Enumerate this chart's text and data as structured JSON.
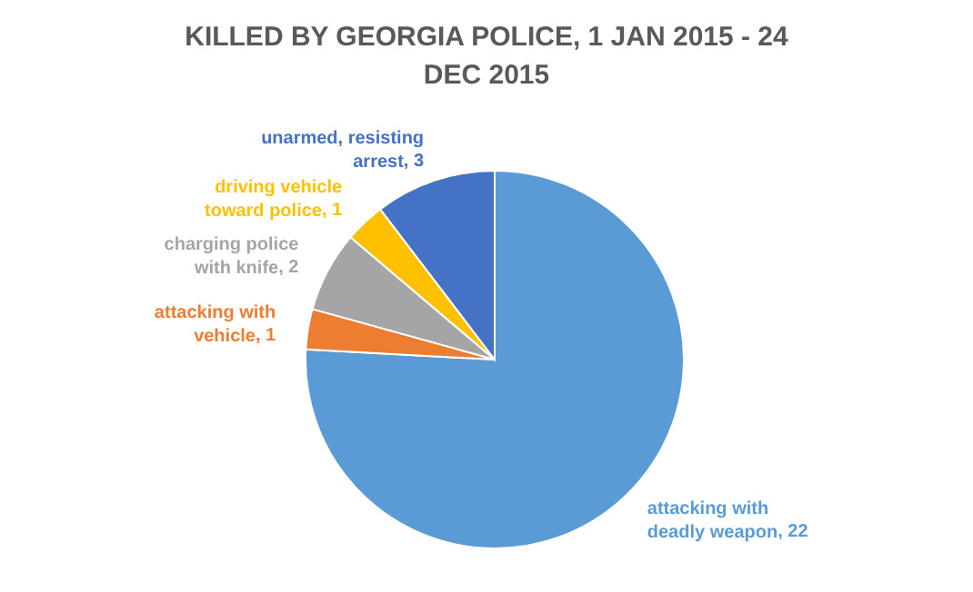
{
  "chart_data": {
    "type": "pie",
    "title": "KILLED BY GEORGIA POLICE, 1 JAN 2015 - 24 DEC 2015",
    "categories": [
      "attacking with deadly weapon",
      "attacking with vehicle",
      "charging police with knife",
      "driving vehicle toward police",
      "unarmed, resisting arrest"
    ],
    "values": [
      22,
      1,
      2,
      1,
      3
    ],
    "colors": [
      "#5b9bd5",
      "#ed7d31",
      "#a5a5a5",
      "#ffc000",
      "#4472c4"
    ],
    "value_labels": [
      ", 22",
      ", 1",
      ", 2",
      ", 1",
      ", 3"
    ]
  }
}
